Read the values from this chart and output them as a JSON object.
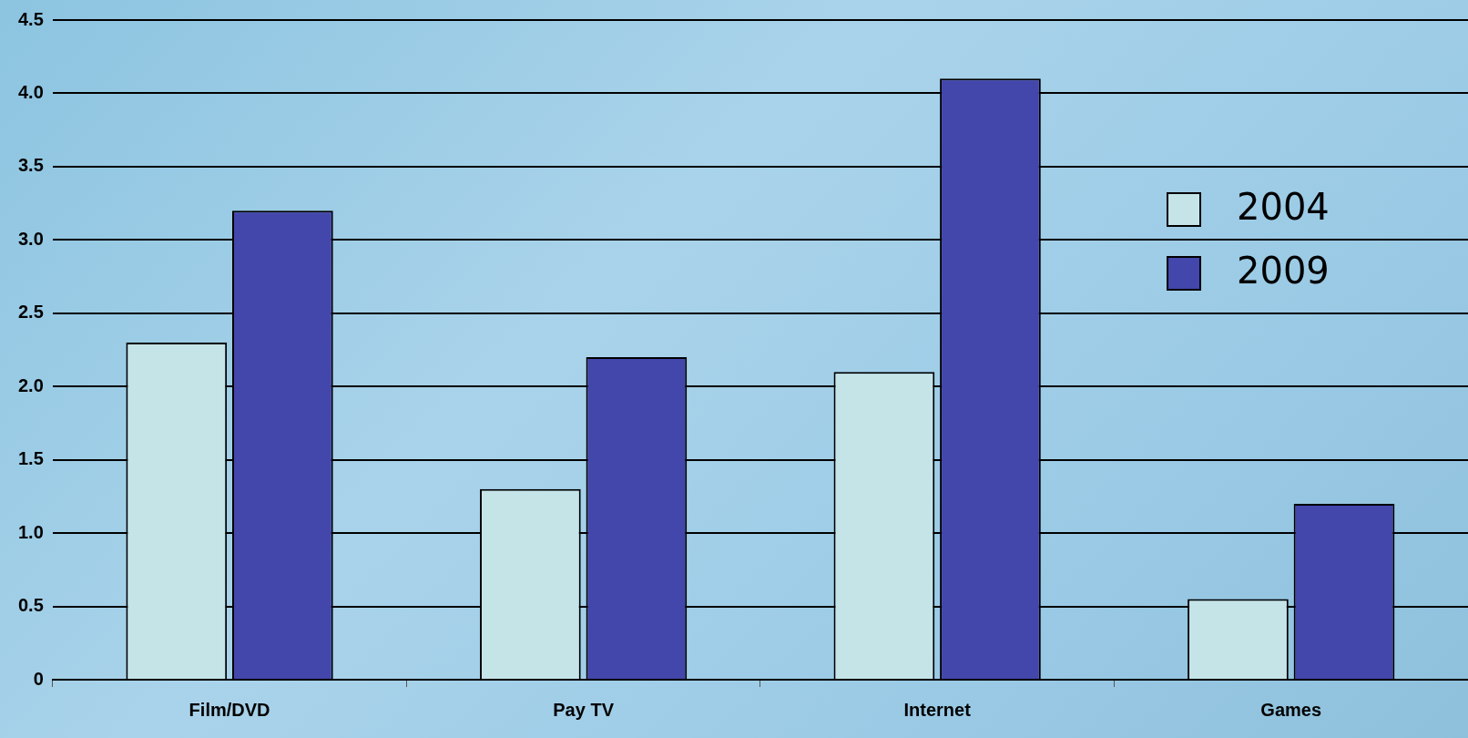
{
  "chart_data": {
    "type": "bar",
    "categories": [
      "Film/DVD",
      "Pay TV",
      "Internet",
      "Games"
    ],
    "series": [
      {
        "name": "2004",
        "color": "#c5e4e8",
        "values": [
          2.3,
          1.3,
          2.1,
          0.55
        ]
      },
      {
        "name": "2009",
        "color": "#4346aa",
        "values": [
          3.2,
          2.2,
          4.1,
          1.2
        ]
      }
    ],
    "ylim": [
      0,
      4.5
    ],
    "yticks": [
      0,
      {
        "value": 0.5,
        "label": "0.5"
      },
      {
        "value": 1,
        "label": "1.0"
      },
      {
        "value": 1.5,
        "label": "1.5"
      },
      {
        "value": 2,
        "label": "2.0"
      },
      {
        "value": 2.5,
        "label": "2.5"
      },
      {
        "value": 3,
        "label": "3.0"
      },
      {
        "value": 3.5,
        "label": "3.5"
      },
      {
        "value": 4,
        "label": "4.0"
      },
      {
        "value": 4.5,
        "label": "4.5"
      }
    ],
    "grid": "y",
    "legend": "right"
  }
}
